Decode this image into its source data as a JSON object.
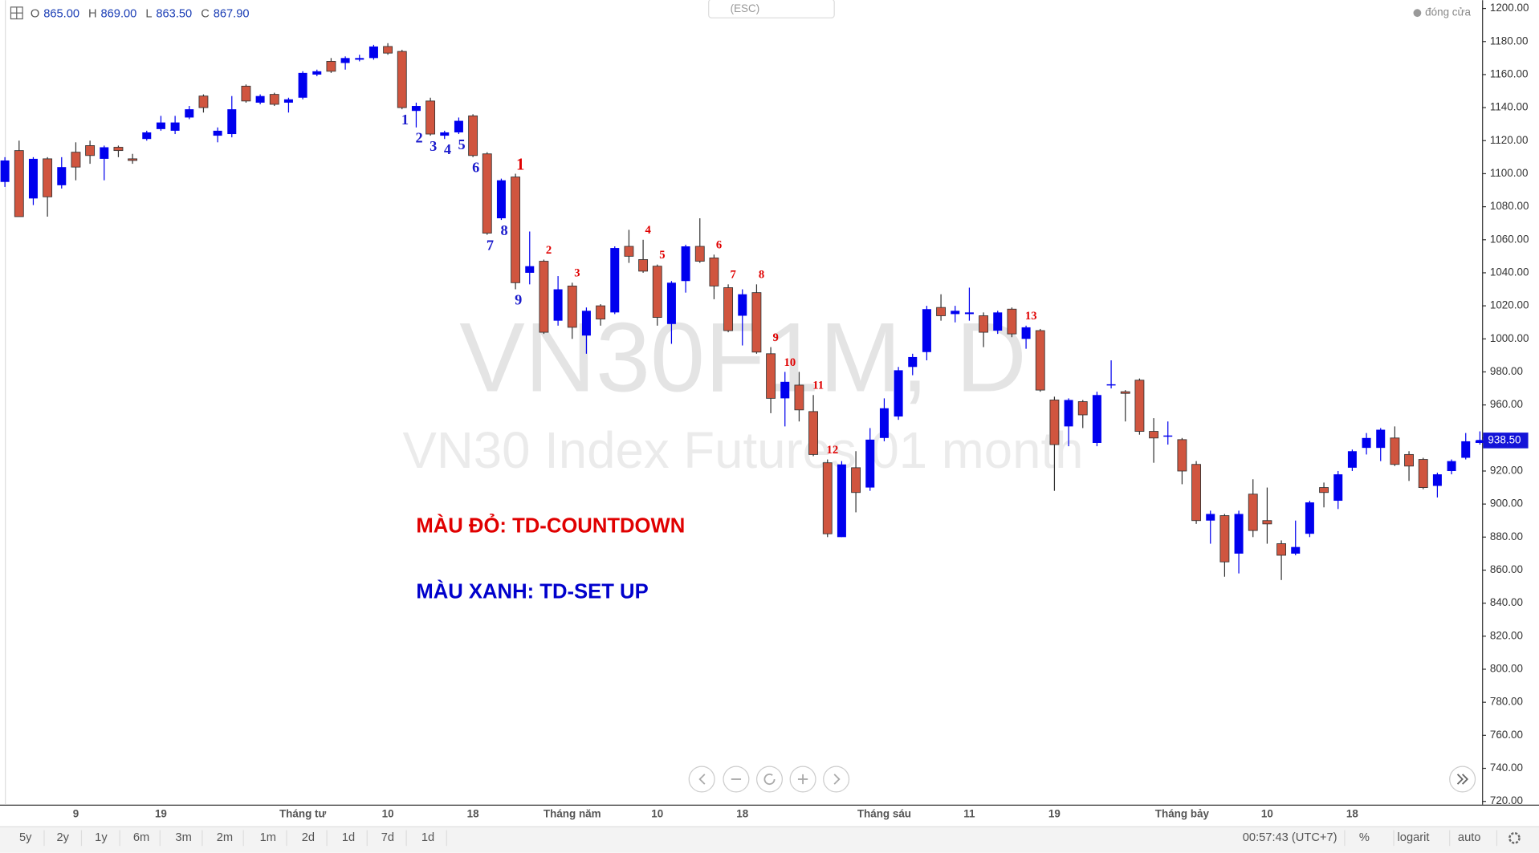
{
  "chart_data": {
    "type": "candlestick",
    "title": "VN30F1M, D",
    "subtitle": "VN30 Index Futures 01 month",
    "legend": [
      {
        "key": "O",
        "value": "865.00"
      },
      {
        "key": "H",
        "value": "869.00"
      },
      {
        "key": "L",
        "value": "863.50"
      },
      {
        "key": "C",
        "value": "867.90"
      }
    ],
    "hint": "(ESC)",
    "price_source": "đóng cửa",
    "annotations": [
      {
        "text": "MÀU ĐỎ: TD-COUNTDOWN",
        "color": "#e00000"
      },
      {
        "text": "MÀU XANH: TD-SET UP",
        "color": "#0000cc"
      }
    ],
    "up_color": "#0000ee",
    "down_color": "#d0553f",
    "grid": false,
    "ylim": [
      718,
      1205
    ],
    "yticks": [
      {
        "value": 1200,
        "label": "1200.00"
      },
      {
        "value": 1180,
        "label": "1180.00"
      },
      {
        "value": 1160,
        "label": "1160.00"
      },
      {
        "value": 1140,
        "label": "1140.00"
      },
      {
        "value": 1120,
        "label": "1120.00"
      },
      {
        "value": 1100,
        "label": "1100.00"
      },
      {
        "value": 1080,
        "label": "1080.00"
      },
      {
        "value": 1060,
        "label": "1060.00"
      },
      {
        "value": 1040,
        "label": "1040.00"
      },
      {
        "value": 1020,
        "label": "1020.00"
      },
      {
        "value": 1000,
        "label": "1000.00"
      },
      {
        "value": 980,
        "label": "980.00"
      },
      {
        "value": 960,
        "label": "960.00"
      },
      {
        "value": 940,
        "label": "940.00"
      },
      {
        "value": 920,
        "label": "920.00"
      },
      {
        "value": 900,
        "label": "900.00"
      },
      {
        "value": 880,
        "label": "880.00"
      },
      {
        "value": 860,
        "label": "860.00"
      },
      {
        "value": 840,
        "label": "840.00"
      },
      {
        "value": 820,
        "label": "820.00"
      },
      {
        "value": 800,
        "label": "800.00"
      },
      {
        "value": 780,
        "label": "780.00"
      },
      {
        "value": 760,
        "label": "760.00"
      },
      {
        "value": 740,
        "label": "740.00"
      },
      {
        "value": 720,
        "label": "720.00"
      }
    ],
    "last_price": {
      "value": 938.5,
      "label": "938.50"
    },
    "categories": [
      null,
      null,
      null,
      null,
      null,
      "9",
      null,
      null,
      null,
      null,
      null,
      "19",
      null,
      null,
      null,
      null,
      null,
      null,
      null,
      null,
      null,
      "Tháng tư",
      null,
      null,
      null,
      null,
      null,
      "10",
      null,
      null,
      null,
      null,
      null,
      "18",
      null,
      null,
      null,
      null,
      null,
      null,
      "Tháng năm",
      null,
      null,
      null,
      null,
      null,
      "10",
      null,
      null,
      null,
      null,
      null,
      "18",
      null,
      null,
      null,
      null,
      null,
      null,
      null,
      null,
      null,
      "Tháng sáu",
      null,
      null,
      null,
      null,
      null,
      "11",
      null,
      null,
      null,
      null,
      null,
      "19",
      null,
      null,
      null,
      null,
      null,
      null,
      null,
      null,
      "Tháng bảy",
      null,
      null,
      null,
      null,
      null,
      "10",
      null,
      null,
      null,
      null,
      null,
      "18",
      null,
      null,
      null,
      null,
      null,
      null,
      null,
      null,
      null
    ],
    "open": [
      1095,
      1114,
      1085,
      1109,
      1093,
      1113,
      1117,
      1109,
      1116,
      1109,
      1121,
      1127,
      1126,
      1134,
      1147,
      1123,
      1124,
      1153,
      1143,
      1148,
      1143,
      1146,
      1160,
      1168,
      1167,
      1169,
      1170,
      1177,
      1174,
      1138,
      1144,
      1123,
      1125,
      1135,
      1112,
      1073,
      1098,
      1040,
      1047,
      1011,
      1032,
      1002,
      1020,
      1016,
      1056,
      1048,
      1044,
      1009,
      1035,
      1056,
      1049,
      1031,
      1014,
      1028,
      991,
      964,
      972,
      956,
      925,
      880,
      922,
      910,
      940,
      953,
      983,
      992,
      1019,
      1015,
      1015,
      1014,
      1005,
      1018,
      1000,
      1005,
      963,
      947,
      962,
      937,
      972,
      968,
      975,
      944,
      941,
      939,
      924,
      890,
      893,
      870,
      906,
      890,
      876,
      870,
      882,
      910,
      902,
      922,
      934,
      934,
      940,
      930,
      927,
      911,
      920,
      928,
      937
    ],
    "high": [
      1110,
      1120,
      1110,
      1110,
      1110,
      1119,
      1120,
      1117,
      1117,
      1112,
      1126,
      1135,
      1135,
      1141,
      1148,
      1128,
      1147,
      1154,
      1148,
      1149,
      1146,
      1162,
      1163,
      1170,
      1171,
      1172,
      1178,
      1179,
      1175,
      1143,
      1146,
      1126,
      1134,
      1136,
      1113,
      1097,
      1100,
      1065,
      1048,
      1038,
      1034,
      1019,
      1021,
      1056,
      1066,
      1060,
      1045,
      1035,
      1057,
      1073,
      1051,
      1033,
      1030,
      1033,
      995,
      980,
      980,
      966,
      927,
      926,
      932,
      946,
      964,
      983,
      991,
      1020,
      1027,
      1020,
      1031,
      1016,
      1017,
      1019,
      1008,
      1006,
      965,
      964,
      963,
      968,
      987,
      969,
      976,
      952,
      950,
      940,
      926,
      896,
      894,
      896,
      915,
      910,
      878,
      890,
      902,
      913,
      920,
      933,
      943,
      946,
      947,
      932,
      928,
      919,
      927,
      943,
      944
    ],
    "low": [
      1092,
      1074,
      1081,
      1074,
      1091,
      1096,
      1106,
      1096,
      1110,
      1106,
      1120,
      1126,
      1124,
      1133,
      1137,
      1119,
      1122,
      1143,
      1142,
      1141,
      1137,
      1145,
      1159,
      1161,
      1163,
      1168,
      1169,
      1172,
      1139,
      1128,
      1123,
      1121,
      1124,
      1110,
      1063,
      1072,
      1030,
      1033,
      1003,
      1008,
      1000,
      991,
      1008,
      1015,
      1046,
      1040,
      1008,
      997,
      1028,
      1046,
      1024,
      1004,
      996,
      991,
      955,
      947,
      950,
      929,
      880,
      880,
      895,
      908,
      938,
      951,
      978,
      987,
      1011,
      1010,
      1011,
      995,
      1003,
      1001,
      994,
      968,
      908,
      935,
      946,
      935,
      970,
      950,
      942,
      925,
      936,
      912,
      888,
      876,
      856,
      858,
      880,
      876,
      854,
      869,
      880,
      898,
      897,
      920,
      930,
      926,
      923,
      914,
      909,
      904,
      918,
      927,
      936
    ],
    "close": [
      1108,
      1074,
      1109,
      1086,
      1104,
      1104,
      1111,
      1116,
      1114,
      1108,
      1125,
      1131,
      1131,
      1139,
      1140,
      1126,
      1139,
      1144,
      1147,
      1142,
      1145,
      1161,
      1162,
      1162,
      1170,
      1170,
      1177,
      1173,
      1140,
      1141,
      1124,
      1125,
      1132,
      1111,
      1064,
      1096,
      1034,
      1044,
      1004,
      1030,
      1007,
      1017,
      1012,
      1055,
      1050,
      1041,
      1013,
      1034,
      1056,
      1047,
      1032,
      1005,
      1027,
      992,
      964,
      974,
      957,
      930,
      882,
      924,
      907,
      939,
      958,
      981,
      989,
      1018,
      1014,
      1017,
      1016,
      1004,
      1016,
      1003,
      1007,
      969,
      936,
      963,
      954,
      966,
      972.5,
      967,
      944,
      940,
      941.5,
      920,
      890,
      894,
      865,
      894,
      884,
      888,
      869,
      874,
      901,
      907,
      918,
      932,
      940,
      945,
      924,
      923,
      910,
      918,
      926,
      938,
      938.5
    ],
    "setup_labels": [
      null,
      null,
      null,
      null,
      null,
      null,
      null,
      null,
      null,
      null,
      null,
      null,
      null,
      null,
      null,
      null,
      null,
      null,
      null,
      null,
      null,
      null,
      null,
      null,
      null,
      null,
      null,
      null,
      "1",
      "2",
      "3",
      "4",
      "5",
      "6",
      "7",
      "8",
      "9",
      null,
      null,
      null,
      null,
      null,
      null,
      null,
      null,
      null,
      null,
      null,
      null,
      null,
      null,
      null,
      null,
      null,
      null,
      null,
      null,
      null,
      null,
      null,
      null,
      null,
      null,
      null,
      null,
      null,
      null,
      null,
      null,
      null,
      null,
      null,
      null,
      null,
      null,
      null,
      null,
      null,
      null,
      null,
      null,
      null,
      null,
      null,
      null,
      null,
      null,
      null,
      null,
      null,
      null,
      null,
      null,
      null,
      null,
      null,
      null,
      null,
      null,
      null,
      null,
      null,
      null,
      null,
      null
    ],
    "countdown_labels": [
      null,
      null,
      null,
      null,
      null,
      null,
      null,
      null,
      null,
      null,
      null,
      null,
      null,
      null,
      null,
      null,
      null,
      null,
      null,
      null,
      null,
      null,
      null,
      null,
      null,
      null,
      null,
      null,
      null,
      null,
      null,
      null,
      null,
      null,
      null,
      null,
      "1",
      null,
      "2",
      null,
      "3",
      null,
      null,
      null,
      null,
      "4",
      "5",
      null,
      null,
      null,
      "6",
      "7",
      null,
      "8",
      "9",
      "10",
      null,
      "11",
      "12",
      null,
      null,
      null,
      null,
      null,
      null,
      null,
      null,
      null,
      null,
      null,
      null,
      null,
      "13",
      null,
      null,
      null,
      null,
      null,
      null,
      null,
      null,
      null,
      null,
      null,
      null,
      null,
      null,
      null,
      null,
      null,
      null,
      null,
      null,
      null,
      null,
      null,
      null,
      null,
      null,
      null,
      null,
      null,
      null,
      null,
      null
    ],
    "range_buttons": [
      "5y",
      "2y",
      "1y",
      "6m",
      "3m",
      "2m",
      "1m",
      "2d",
      "1d",
      "7d",
      "1d"
    ],
    "clock": "00:57:43 (UTC+7)",
    "options": [
      "%",
      "logarit",
      "auto"
    ]
  }
}
